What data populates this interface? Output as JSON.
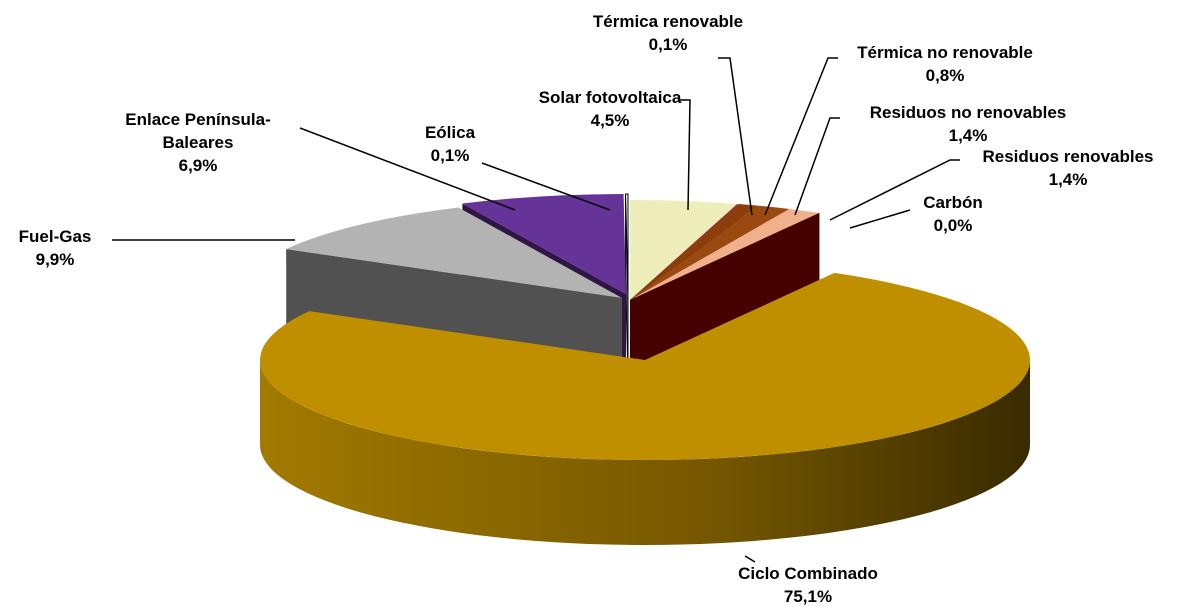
{
  "chart_data": {
    "type": "pie",
    "categories": [
      "Solar fotovoltaica",
      "Térmica renovable",
      "Térmica no renovable",
      "Residuos no renovables",
      "Residuos renovables",
      "Carbón",
      "Ciclo Combinado",
      "Fuel-Gas",
      "Enlace Península-Baleares",
      "Eólica"
    ],
    "values": [
      4.5,
      0.1,
      0.8,
      1.4,
      1.4,
      0.0,
      75.1,
      9.9,
      6.9,
      0.1
    ],
    "value_labels": [
      "4,5%",
      "0,1%",
      "0,8%",
      "1,4%",
      "1,4%",
      "0,0%",
      "75,1%",
      "9,9%",
      "6,9%",
      "0,1%"
    ],
    "colors": [
      "#eeeebb",
      "#a0302f",
      "#8b3e0a",
      "#9a4a10",
      "#f0b08c",
      "#990000",
      "#bf8f00",
      "#b3b3b3",
      "#663399",
      "#ffffff"
    ]
  }
}
